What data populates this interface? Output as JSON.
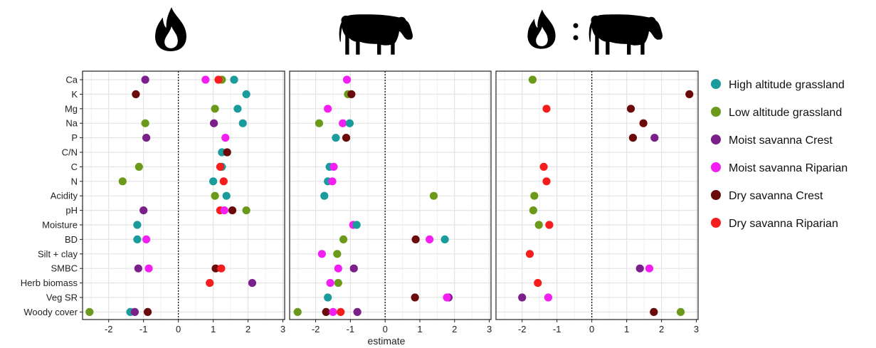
{
  "chart_data": {
    "type": "scatter",
    "xlabel": "estimate",
    "xlim": [
      -2.75,
      3.05
    ],
    "xticks": [
      -2,
      -1,
      0,
      1,
      2,
      3
    ],
    "grid": true,
    "legend_position": "right",
    "categories": [
      "Ca",
      "K",
      "Mg",
      "Na",
      "P",
      "C/N",
      "C",
      "N",
      "Acidity",
      "pH",
      "Moisture",
      "BD",
      "Silt + clay",
      "SMBC",
      "Herb  biomass",
      "Veg  SR",
      "Woody cover"
    ],
    "groups": [
      {
        "name": "High altitude grassland",
        "color": "#1a9c9c"
      },
      {
        "name": "Low altitude grassland",
        "color": "#6b9a1a"
      },
      {
        "name": "Moist savanna Crest",
        "color": "#7b1f8a"
      },
      {
        "name": "Moist savanna Riparian",
        "color": "#f21ef2"
      },
      {
        "name": "Dry savanna Crest",
        "color": "#6b0a0a"
      },
      {
        "name": "Dry savanna Riparian",
        "color": "#f51d1d"
      }
    ],
    "panels": [
      {
        "icon": "fire-icon",
        "points": [
          {
            "cat": "Ca",
            "group": 2,
            "x": -0.95
          },
          {
            "cat": "Ca",
            "group": 3,
            "x": 0.78
          },
          {
            "cat": "Ca",
            "group": 1,
            "x": 1.25
          },
          {
            "cat": "Ca",
            "group": 5,
            "x": 1.15
          },
          {
            "cat": "Ca",
            "group": 0,
            "x": 1.6
          },
          {
            "cat": "K",
            "group": 4,
            "x": -1.22
          },
          {
            "cat": "K",
            "group": 0,
            "x": 1.95
          },
          {
            "cat": "Mg",
            "group": 1,
            "x": 1.05
          },
          {
            "cat": "Mg",
            "group": 0,
            "x": 1.7
          },
          {
            "cat": "Na",
            "group": 1,
            "x": -0.95
          },
          {
            "cat": "Na",
            "group": 2,
            "x": 1.02
          },
          {
            "cat": "Na",
            "group": 0,
            "x": 1.85
          },
          {
            "cat": "P",
            "group": 2,
            "x": -0.92
          },
          {
            "cat": "P",
            "group": 3,
            "x": 1.35
          },
          {
            "cat": "C/N",
            "group": 0,
            "x": 1.25
          },
          {
            "cat": "C/N",
            "group": 4,
            "x": 1.4
          },
          {
            "cat": "C",
            "group": 1,
            "x": -1.13
          },
          {
            "cat": "C",
            "group": 0,
            "x": 1.25
          },
          {
            "cat": "C",
            "group": 5,
            "x": 1.2
          },
          {
            "cat": "N",
            "group": 1,
            "x": -1.6
          },
          {
            "cat": "N",
            "group": 0,
            "x": 1.0
          },
          {
            "cat": "N",
            "group": 5,
            "x": 1.3
          },
          {
            "cat": "Acidity",
            "group": 1,
            "x": 1.05
          },
          {
            "cat": "Acidity",
            "group": 0,
            "x": 1.38
          },
          {
            "cat": "pH",
            "group": 2,
            "x": -1.0
          },
          {
            "cat": "pH",
            "group": 5,
            "x": 1.2
          },
          {
            "cat": "pH",
            "group": 3,
            "x": 1.32
          },
          {
            "cat": "pH",
            "group": 4,
            "x": 1.55
          },
          {
            "cat": "pH",
            "group": 1,
            "x": 1.95
          },
          {
            "cat": "Moisture",
            "group": 0,
            "x": -1.18
          },
          {
            "cat": "BD",
            "group": 0,
            "x": -1.18
          },
          {
            "cat": "BD",
            "group": 3,
            "x": -0.92
          },
          {
            "cat": "SMBC",
            "group": 2,
            "x": -1.15
          },
          {
            "cat": "SMBC",
            "group": 3,
            "x": -0.85
          },
          {
            "cat": "SMBC",
            "group": 4,
            "x": 1.07
          },
          {
            "cat": "SMBC",
            "group": 5,
            "x": 1.23
          },
          {
            "cat": "Herb  biomass",
            "group": 5,
            "x": 0.9
          },
          {
            "cat": "Herb  biomass",
            "group": 2,
            "x": 2.12
          },
          {
            "cat": "Woody cover",
            "group": 1,
            "x": -2.55
          },
          {
            "cat": "Woody cover",
            "group": 0,
            "x": -1.38
          },
          {
            "cat": "Woody cover",
            "group": 2,
            "x": -1.25
          },
          {
            "cat": "Woody cover",
            "group": 4,
            "x": -0.88
          }
        ]
      },
      {
        "icon": "cow-icon",
        "points": [
          {
            "cat": "Ca",
            "group": 3,
            "x": -1.1
          },
          {
            "cat": "K",
            "group": 1,
            "x": -1.07
          },
          {
            "cat": "K",
            "group": 4,
            "x": -0.97
          },
          {
            "cat": "Mg",
            "group": 3,
            "x": -1.65
          },
          {
            "cat": "Na",
            "group": 1,
            "x": -1.9
          },
          {
            "cat": "Na",
            "group": 3,
            "x": -1.22
          },
          {
            "cat": "Na",
            "group": 0,
            "x": -1.02
          },
          {
            "cat": "P",
            "group": 0,
            "x": -1.42
          },
          {
            "cat": "P",
            "group": 4,
            "x": -1.12
          },
          {
            "cat": "C",
            "group": 0,
            "x": -1.6
          },
          {
            "cat": "C",
            "group": 3,
            "x": -1.48
          },
          {
            "cat": "N",
            "group": 0,
            "x": -1.65
          },
          {
            "cat": "N",
            "group": 3,
            "x": -1.52
          },
          {
            "cat": "Acidity",
            "group": 0,
            "x": -1.75
          },
          {
            "cat": "Acidity",
            "group": 1,
            "x": 1.4
          },
          {
            "cat": "Moisture",
            "group": 3,
            "x": -0.92
          },
          {
            "cat": "Moisture",
            "group": 0,
            "x": -0.82
          },
          {
            "cat": "BD",
            "group": 1,
            "x": -1.2
          },
          {
            "cat": "BD",
            "group": 4,
            "x": 0.88
          },
          {
            "cat": "BD",
            "group": 3,
            "x": 1.28
          },
          {
            "cat": "BD",
            "group": 0,
            "x": 1.72
          },
          {
            "cat": "Silt + clay",
            "group": 3,
            "x": -1.82
          },
          {
            "cat": "Silt + clay",
            "group": 1,
            "x": -1.38
          },
          {
            "cat": "SMBC",
            "group": 3,
            "x": -1.35
          },
          {
            "cat": "SMBC",
            "group": 2,
            "x": -0.9
          },
          {
            "cat": "Herb  biomass",
            "group": 3,
            "x": -1.58
          },
          {
            "cat": "Herb  biomass",
            "group": 1,
            "x": -1.35
          },
          {
            "cat": "Veg  SR",
            "group": 0,
            "x": -1.65
          },
          {
            "cat": "Veg  SR",
            "group": 4,
            "x": 0.86
          },
          {
            "cat": "Veg  SR",
            "group": 2,
            "x": 1.83
          },
          {
            "cat": "Veg  SR",
            "group": 3,
            "x": 1.78
          },
          {
            "cat": "Woody cover",
            "group": 1,
            "x": -2.52
          },
          {
            "cat": "Woody cover",
            "group": 4,
            "x": -1.7
          },
          {
            "cat": "Woody cover",
            "group": 3,
            "x": -1.5
          },
          {
            "cat": "Woody cover",
            "group": 5,
            "x": -1.28
          },
          {
            "cat": "Woody cover",
            "group": 2,
            "x": -0.8
          }
        ]
      },
      {
        "icon": "fire-cow-interaction-icon",
        "points": [
          {
            "cat": "Ca",
            "group": 1,
            "x": -1.7
          },
          {
            "cat": "K",
            "group": 4,
            "x": 2.8
          },
          {
            "cat": "Mg",
            "group": 5,
            "x": -1.3
          },
          {
            "cat": "Mg",
            "group": 4,
            "x": 1.12
          },
          {
            "cat": "Na",
            "group": 4,
            "x": 1.48
          },
          {
            "cat": "P",
            "group": 4,
            "x": 1.18
          },
          {
            "cat": "P",
            "group": 2,
            "x": 1.8
          },
          {
            "cat": "C",
            "group": 5,
            "x": -1.38
          },
          {
            "cat": "N",
            "group": 5,
            "x": -1.3
          },
          {
            "cat": "Acidity",
            "group": 1,
            "x": -1.65
          },
          {
            "cat": "pH",
            "group": 1,
            "x": -1.68
          },
          {
            "cat": "Moisture",
            "group": 1,
            "x": -1.52
          },
          {
            "cat": "Moisture",
            "group": 5,
            "x": -1.22
          },
          {
            "cat": "Silt + clay",
            "group": 5,
            "x": -1.78
          },
          {
            "cat": "SMBC",
            "group": 2,
            "x": 1.38
          },
          {
            "cat": "SMBC",
            "group": 3,
            "x": 1.65
          },
          {
            "cat": "Herb  biomass",
            "group": 5,
            "x": -1.55
          },
          {
            "cat": "Veg  SR",
            "group": 2,
            "x": -2.0
          },
          {
            "cat": "Veg  SR",
            "group": 3,
            "x": -1.25
          },
          {
            "cat": "Woody cover",
            "group": 4,
            "x": 1.78
          },
          {
            "cat": "Woody cover",
            "group": 1,
            "x": 2.55
          }
        ]
      }
    ]
  }
}
